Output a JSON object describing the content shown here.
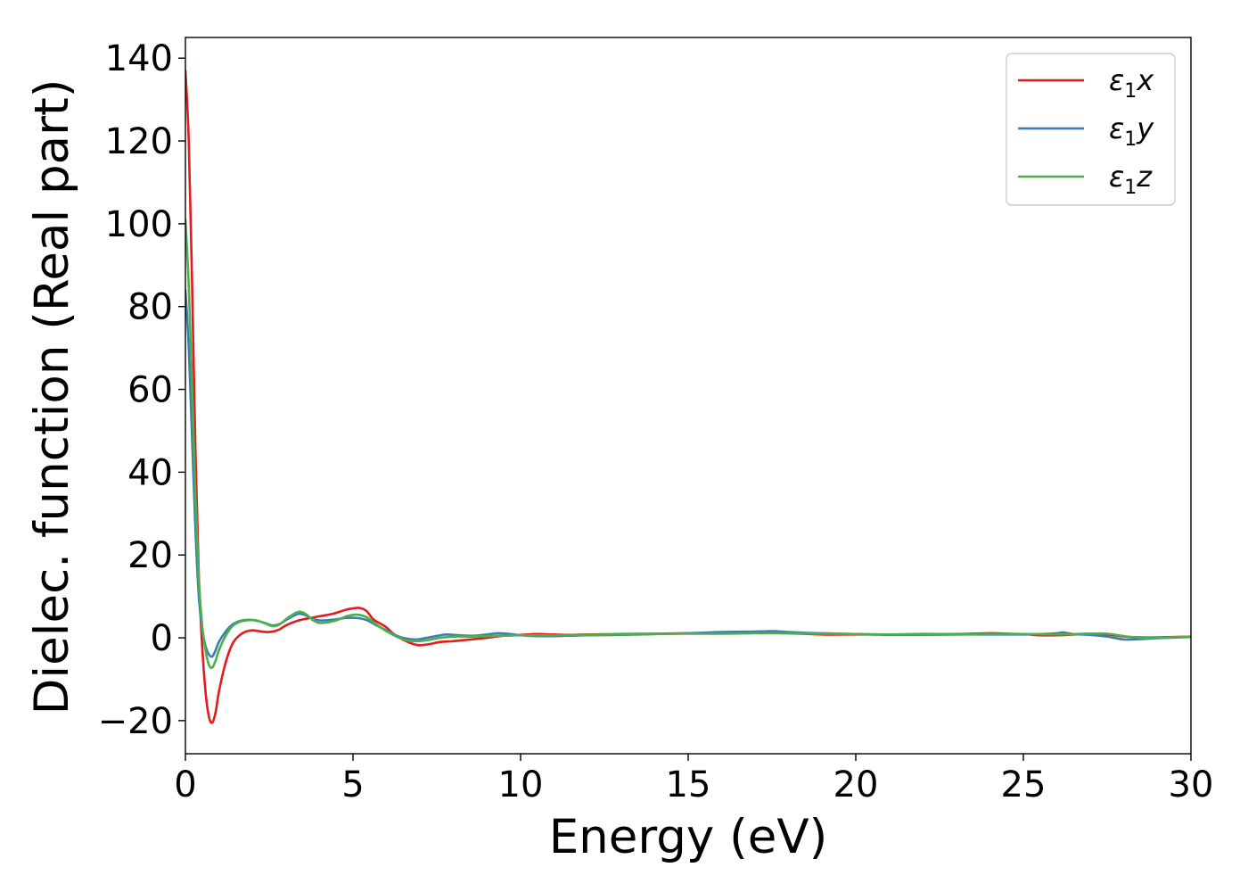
{
  "chart_data": {
    "type": "line",
    "xlabel": "Energy (eV)",
    "ylabel": "Dielec. function (Real part)",
    "xlim": [
      0,
      30
    ],
    "ylim": [
      -28,
      145
    ],
    "xticks": [
      0,
      5,
      10,
      15,
      20,
      25,
      30
    ],
    "xtick_labels": [
      "0",
      "5",
      "10",
      "15",
      "20",
      "25",
      "30"
    ],
    "yticks": [
      -20,
      0,
      20,
      40,
      60,
      80,
      100,
      120,
      140
    ],
    "ytick_labels": [
      "−20",
      "0",
      "20",
      "40",
      "60",
      "80",
      "100",
      "120",
      "140"
    ],
    "grid": false,
    "legend_position": "top-right",
    "series": [
      {
        "name": "ε₁x",
        "legend_main": "ε",
        "legend_sub": "1",
        "legend_suffix": "x",
        "color": "#e41a1c",
        "points": [
          [
            0,
            137
          ],
          [
            0.1,
            120
          ],
          [
            0.2,
            85
          ],
          [
            0.3,
            45
          ],
          [
            0.4,
            15
          ],
          [
            0.5,
            -2
          ],
          [
            0.6,
            -13
          ],
          [
            0.7,
            -19
          ],
          [
            0.8,
            -20.5
          ],
          [
            0.9,
            -18
          ],
          [
            1.0,
            -13
          ],
          [
            1.2,
            -6
          ],
          [
            1.4,
            -1.5
          ],
          [
            1.6,
            0.5
          ],
          [
            1.8,
            1.5
          ],
          [
            2.0,
            1.8
          ],
          [
            2.2,
            1.6
          ],
          [
            2.4,
            1.4
          ],
          [
            2.6,
            1.5
          ],
          [
            2.8,
            2
          ],
          [
            3.0,
            3
          ],
          [
            3.3,
            4
          ],
          [
            3.6,
            4.6
          ],
          [
            4.0,
            5.2
          ],
          [
            4.4,
            5.8
          ],
          [
            4.8,
            6.8
          ],
          [
            5.0,
            7.1
          ],
          [
            5.2,
            7.2
          ],
          [
            5.4,
            6.5
          ],
          [
            5.6,
            4.5
          ],
          [
            5.8,
            3.5
          ],
          [
            6.0,
            2.5
          ],
          [
            6.2,
            1
          ],
          [
            6.5,
            -0.5
          ],
          [
            6.8,
            -1.5
          ],
          [
            7.0,
            -1.8
          ],
          [
            7.3,
            -1.5
          ],
          [
            7.6,
            -1
          ],
          [
            8.0,
            -0.8
          ],
          [
            8.5,
            -0.4
          ],
          [
            9.0,
            0
          ],
          [
            9.5,
            0.5
          ],
          [
            10,
            0.7
          ],
          [
            10.5,
            0.9
          ],
          [
            11,
            0.8
          ],
          [
            11.5,
            0.7
          ],
          [
            12,
            0.8
          ],
          [
            13,
            0.9
          ],
          [
            14,
            1
          ],
          [
            15,
            1.1
          ],
          [
            16,
            1.2
          ],
          [
            17,
            1.2
          ],
          [
            18,
            1.1
          ],
          [
            19,
            0.8
          ],
          [
            20,
            0.8
          ],
          [
            21,
            0.8
          ],
          [
            22,
            0.9
          ],
          [
            23,
            0.9
          ],
          [
            24,
            1.1
          ],
          [
            24.5,
            1
          ],
          [
            25,
            0.9
          ],
          [
            25.5,
            0.6
          ],
          [
            26,
            0.6
          ],
          [
            26.5,
            0.8
          ],
          [
            27,
            1
          ],
          [
            27.5,
            0.8
          ],
          [
            28,
            0.3
          ],
          [
            28.5,
            0.1
          ],
          [
            29,
            0.1
          ],
          [
            30,
            0.3
          ]
        ]
      },
      {
        "name": "ε₁y",
        "legend_main": "ε",
        "legend_sub": "1",
        "legend_suffix": "y",
        "color": "#377eb8",
        "points": [
          [
            0,
            84
          ],
          [
            0.1,
            70
          ],
          [
            0.2,
            48
          ],
          [
            0.3,
            26
          ],
          [
            0.4,
            10
          ],
          [
            0.5,
            2
          ],
          [
            0.6,
            -2
          ],
          [
            0.7,
            -4
          ],
          [
            0.8,
            -4.5
          ],
          [
            0.9,
            -3
          ],
          [
            1.0,
            -1
          ],
          [
            1.2,
            1.5
          ],
          [
            1.4,
            3.2
          ],
          [
            1.6,
            4
          ],
          [
            1.8,
            4.3
          ],
          [
            2.0,
            4.3
          ],
          [
            2.2,
            4
          ],
          [
            2.4,
            3.5
          ],
          [
            2.6,
            3
          ],
          [
            2.8,
            3.3
          ],
          [
            3.0,
            4.3
          ],
          [
            3.2,
            5.2
          ],
          [
            3.4,
            5.8
          ],
          [
            3.6,
            5.4
          ],
          [
            3.8,
            4.6
          ],
          [
            4.0,
            4.2
          ],
          [
            4.3,
            4.3
          ],
          [
            4.6,
            4.6
          ],
          [
            4.8,
            4.8
          ],
          [
            5.1,
            4.8
          ],
          [
            5.4,
            4.3
          ],
          [
            5.7,
            3
          ],
          [
            6.0,
            1.8
          ],
          [
            6.3,
            0.5
          ],
          [
            6.6,
            -0.2
          ],
          [
            6.9,
            -0.4
          ],
          [
            7.2,
            0
          ],
          [
            7.6,
            0.6
          ],
          [
            7.8,
            0.8
          ],
          [
            8.2,
            0.6
          ],
          [
            8.6,
            0.5
          ],
          [
            9.0,
            0.8
          ],
          [
            9.3,
            1.1
          ],
          [
            9.6,
            1
          ],
          [
            10,
            0.6
          ],
          [
            10.5,
            0.4
          ],
          [
            11,
            0.4
          ],
          [
            11.5,
            0.5
          ],
          [
            12,
            0.6
          ],
          [
            13,
            0.7
          ],
          [
            14,
            0.9
          ],
          [
            15,
            1.1
          ],
          [
            16,
            1.4
          ],
          [
            17,
            1.5
          ],
          [
            17.5,
            1.6
          ],
          [
            18,
            1.4
          ],
          [
            18.5,
            1.2
          ],
          [
            19,
            1.1
          ],
          [
            20,
            0.9
          ],
          [
            21,
            0.7
          ],
          [
            22,
            0.7
          ],
          [
            23,
            0.8
          ],
          [
            24,
            0.8
          ],
          [
            25,
            0.8
          ],
          [
            25.5,
            0.9
          ],
          [
            26,
            1.1
          ],
          [
            26.2,
            1.3
          ],
          [
            26.5,
            0.9
          ],
          [
            27,
            0.7
          ],
          [
            27.5,
            0.3
          ],
          [
            28,
            -0.4
          ],
          [
            28.5,
            -0.3
          ],
          [
            29,
            -0.1
          ],
          [
            30,
            0.2
          ]
        ]
      },
      {
        "name": "ε₁z",
        "legend_main": "ε",
        "legend_sub": "1",
        "legend_suffix": "z",
        "color": "#4daf4a",
        "points": [
          [
            0,
            101
          ],
          [
            0.1,
            85
          ],
          [
            0.2,
            60
          ],
          [
            0.3,
            34
          ],
          [
            0.4,
            14
          ],
          [
            0.5,
            3
          ],
          [
            0.6,
            -3
          ],
          [
            0.7,
            -6.5
          ],
          [
            0.8,
            -7.2
          ],
          [
            0.9,
            -5.5
          ],
          [
            1.0,
            -3
          ],
          [
            1.2,
            0.5
          ],
          [
            1.4,
            2.8
          ],
          [
            1.6,
            3.8
          ],
          [
            1.8,
            4.2
          ],
          [
            2.0,
            4.3
          ],
          [
            2.2,
            4
          ],
          [
            2.4,
            3.4
          ],
          [
            2.6,
            2.8
          ],
          [
            2.8,
            3.2
          ],
          [
            3.0,
            4.5
          ],
          [
            3.2,
            5.6
          ],
          [
            3.4,
            6.3
          ],
          [
            3.6,
            5.7
          ],
          [
            3.8,
            4.3
          ],
          [
            4.0,
            3.6
          ],
          [
            4.3,
            3.8
          ],
          [
            4.6,
            4.5
          ],
          [
            4.8,
            5.2
          ],
          [
            5.1,
            5.6
          ],
          [
            5.4,
            5
          ],
          [
            5.7,
            3.2
          ],
          [
            6.0,
            1.6
          ],
          [
            6.3,
            0.3
          ],
          [
            6.6,
            -0.6
          ],
          [
            6.9,
            -0.8
          ],
          [
            7.2,
            -0.6
          ],
          [
            7.6,
            0
          ],
          [
            8.0,
            0.3
          ],
          [
            8.5,
            0.3
          ],
          [
            9.0,
            0.4
          ],
          [
            9.5,
            0.5
          ],
          [
            10,
            0.6
          ],
          [
            11,
            0.6
          ],
          [
            12,
            0.7
          ],
          [
            13,
            0.8
          ],
          [
            14,
            0.9
          ],
          [
            15,
            1
          ],
          [
            16,
            1
          ],
          [
            17,
            1.1
          ],
          [
            18,
            1.1
          ],
          [
            19,
            1
          ],
          [
            20,
            0.9
          ],
          [
            21,
            0.8
          ],
          [
            22,
            0.8
          ],
          [
            23,
            0.8
          ],
          [
            24,
            0.9
          ],
          [
            25,
            0.9
          ],
          [
            26,
            0.8
          ],
          [
            26.5,
            0.9
          ],
          [
            27,
            1
          ],
          [
            27.5,
            1
          ],
          [
            28,
            0.4
          ],
          [
            28.5,
            0
          ],
          [
            29,
            0
          ],
          [
            30,
            0.3
          ]
        ]
      }
    ]
  }
}
